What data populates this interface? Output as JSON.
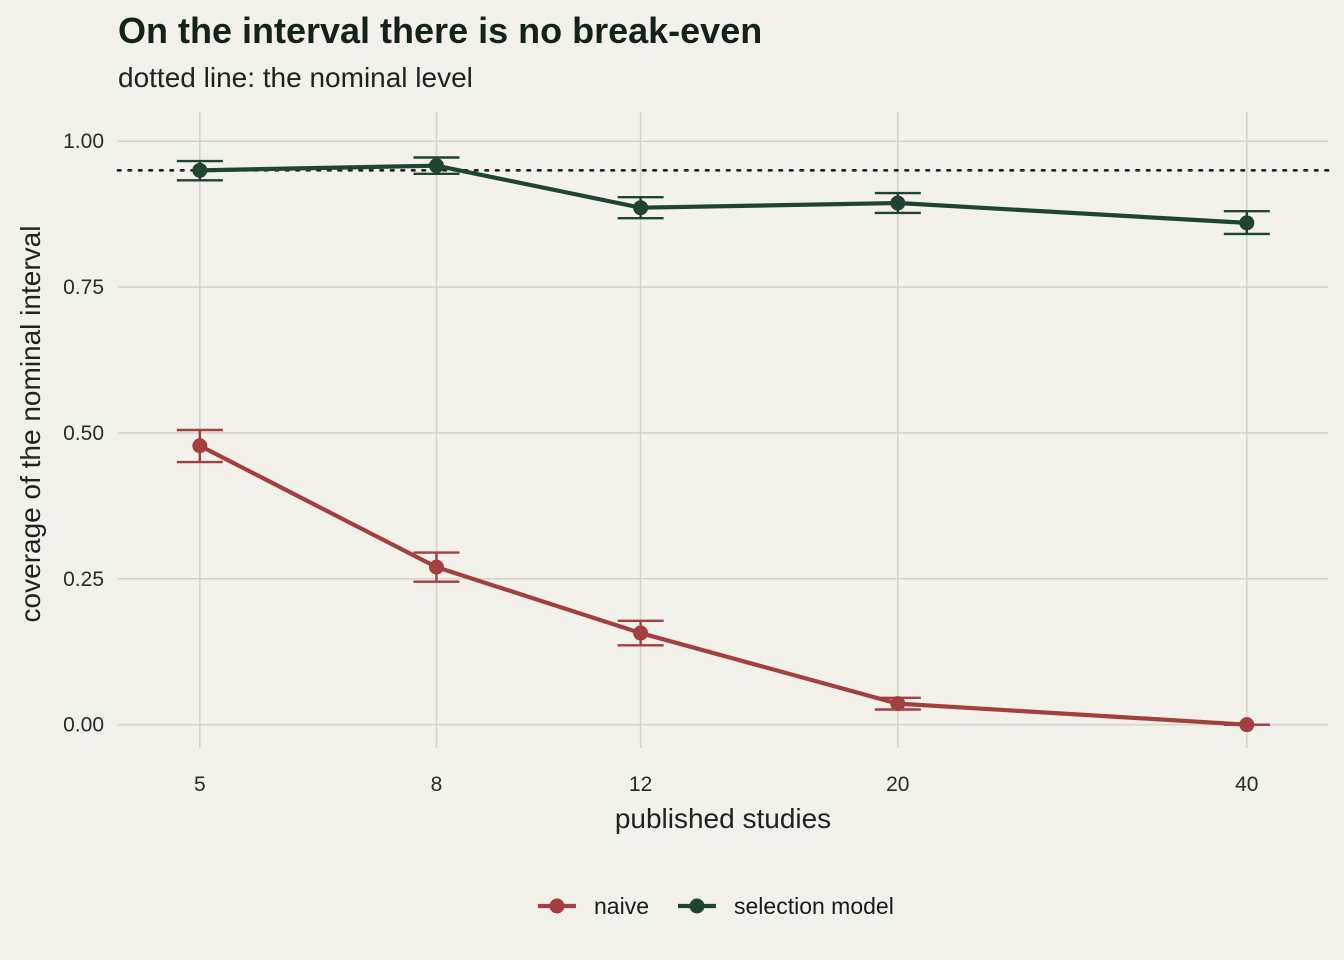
{
  "title": "On the interval there is no break-even",
  "subtitle": "dotted line: the nominal level",
  "chart_data": {
    "type": "line",
    "title": "On the interval there is no break-even",
    "subtitle": "dotted line: the nominal level",
    "xlabel": "published studies",
    "ylabel": "coverage of the nominal interval",
    "x": [
      5,
      8,
      12,
      20,
      40
    ],
    "x_tick_labels": [
      "5",
      "8",
      "12",
      "20",
      "40"
    ],
    "x_scale": "log",
    "xlim": [
      4.25,
      47
    ],
    "y_ticks": [
      0.0,
      0.25,
      0.5,
      0.75,
      1.0
    ],
    "y_tick_labels": [
      "0.00",
      "0.25",
      "0.50",
      "0.75",
      "1.00"
    ],
    "ylim": [
      -0.04,
      1.05
    ],
    "reference_line": {
      "y": 0.95,
      "style": "dotted"
    },
    "grid": true,
    "legend_position": "bottom",
    "series": [
      {
        "name": "naive",
        "color": "#a33f3f",
        "values": [
          0.478,
          0.27,
          0.157,
          0.036,
          0.0
        ],
        "lower": [
          0.45,
          0.245,
          0.136,
          0.026,
          0.0
        ],
        "upper": [
          0.505,
          0.295,
          0.178,
          0.046,
          0.0
        ]
      },
      {
        "name": "selection model",
        "color": "#1f4430",
        "values": [
          0.95,
          0.958,
          0.886,
          0.894,
          0.86
        ],
        "lower": [
          0.933,
          0.944,
          0.868,
          0.877,
          0.841
        ],
        "upper": [
          0.966,
          0.972,
          0.904,
          0.911,
          0.88
        ]
      }
    ]
  }
}
